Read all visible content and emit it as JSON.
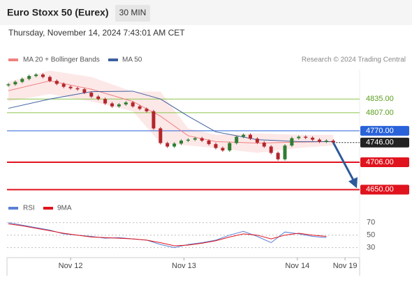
{
  "header": {
    "title": "Euro Stoxx 50 (Eurex)",
    "interval": "30 MIN",
    "timestamp": "Thursday, November 14, 2024 7:43:01 AM CET"
  },
  "credit": "Research © 2024 Trading Central",
  "chart_data": [
    {
      "type": "candlestick",
      "up_color": "#2f7d32",
      "down_color": "#b3262b",
      "values": [
        4865,
        4870,
        4876,
        4882,
        4885,
        4880,
        4872,
        4866,
        4860,
        4857,
        4855,
        4848,
        4840,
        4835,
        4826,
        4820,
        4824,
        4828,
        4820,
        4815,
        4810,
        4775,
        4745,
        4738,
        4744,
        4750,
        4752,
        4755,
        4750,
        4743,
        4735,
        4730,
        4745,
        4758,
        4762,
        4754,
        4746,
        4738,
        4725,
        4712,
        4740,
        4755,
        4758,
        4756,
        4752,
        4748,
        4750,
        4746
      ],
      "ylim": [
        4632,
        4895
      ],
      "xticks": [
        {
          "value": 9,
          "label": "Nov 12"
        },
        {
          "value": 25.4,
          "label": "Nov 13"
        },
        {
          "value": 41.8,
          "label": "Nov 14"
        },
        {
          "value": 48.7,
          "label": "Nov 19"
        }
      ],
      "series": [
        {
          "name": "MA 20 + Bollinger Bands",
          "color": "#f08080",
          "x": [
            0,
            6,
            12,
            18,
            22,
            26,
            30,
            36,
            42,
            47
          ],
          "values": [
            4852,
            4872,
            4855,
            4830,
            4800,
            4760,
            4748,
            4745,
            4747,
            4748
          ],
          "band": {
            "color": "#fde2e2",
            "upper": [
              4870,
              4893,
              4880,
              4850,
              4850,
              4775,
              4762,
              4765,
              4762,
              4762
            ],
            "lower": [
              4830,
              4845,
              4830,
              4810,
              4745,
              4740,
              4735,
              4725,
              4735,
              4740
            ]
          }
        },
        {
          "name": "MA 50",
          "color": "#3c5fa0",
          "x": [
            0,
            6,
            12,
            18,
            22,
            26,
            30,
            36,
            42,
            47
          ],
          "values": [
            4816,
            4835,
            4850,
            4851,
            4835,
            4800,
            4768,
            4752,
            4748,
            4748
          ]
        }
      ],
      "levels": [
        {
          "value": 4835,
          "label": "4835.00",
          "color": "#8bc34a",
          "boxed": false
        },
        {
          "value": 4807,
          "label": "4807.00",
          "color": "#8bc34a",
          "boxed": false
        },
        {
          "value": 4770,
          "label": "4770.00",
          "color": "#2962d9",
          "boxed": true
        },
        {
          "value": 4746,
          "label": "4746.00",
          "color": "#222222",
          "boxed": true
        },
        {
          "value": 4706,
          "label": "4706.00",
          "color": "#e0141e",
          "boxed": true
        },
        {
          "value": 4650,
          "label": "4650.00",
          "color": "#e0141e",
          "boxed": true
        }
      ],
      "forecast_color": "#2e5a9c"
    },
    {
      "type": "line",
      "ylim": [
        14,
        92
      ],
      "yticks": [
        30,
        50,
        70
      ],
      "series": [
        {
          "name": "RSI",
          "color": "#5b7fd6",
          "x": [
            0,
            2,
            4,
            6,
            8,
            10,
            12,
            14,
            16,
            18,
            20,
            22,
            24,
            26,
            28,
            30,
            32,
            34,
            36,
            38,
            40,
            42,
            44,
            46
          ],
          "values": [
            70,
            66,
            62,
            58,
            52,
            50,
            48,
            45,
            46,
            44,
            42,
            35,
            30,
            35,
            38,
            42,
            50,
            56,
            48,
            38,
            55,
            52,
            48,
            46
          ]
        },
        {
          "name": "9MA",
          "color": "#e0141e",
          "x": [
            0,
            2,
            4,
            6,
            8,
            10,
            12,
            14,
            16,
            18,
            20,
            22,
            24,
            26,
            28,
            30,
            32,
            34,
            36,
            38,
            40,
            42,
            44,
            46
          ],
          "values": [
            68,
            65,
            61,
            57,
            53,
            50,
            47,
            46,
            45,
            44,
            42,
            38,
            33,
            34,
            37,
            41,
            47,
            52,
            50,
            44,
            50,
            53,
            50,
            48
          ]
        }
      ]
    }
  ]
}
